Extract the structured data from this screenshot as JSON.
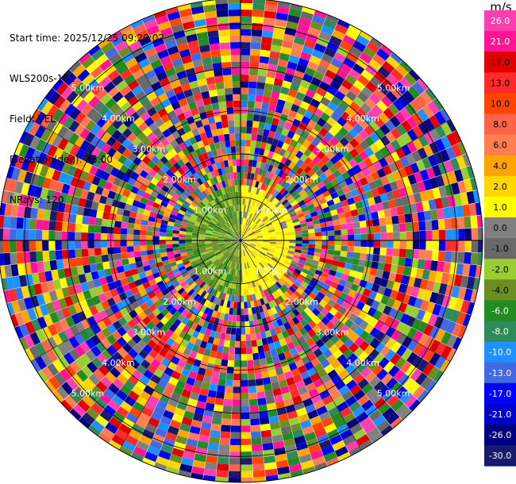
{
  "info": {
    "start_time": "Start time: 2025/12/25 09:20:02",
    "instrument": "WLS200s-181",
    "field": "Field: VEL",
    "elevation": "Elevation(deg): 35.00",
    "nrays": "NRays: 120"
  },
  "colorbar": {
    "unit": "m/s",
    "ticks": [
      "26.0",
      "21.0",
      "17.0",
      "13.0",
      "10.0",
      "8.0",
      "6.0",
      "4.0",
      "2.0",
      "1.0",
      "0.0",
      "-1.0",
      "-2.0",
      "-4.0",
      "-6.0",
      "-8.0",
      "-10.0",
      "-13.0",
      "-17.0",
      "-21.0",
      "-26.0",
      "-30.0"
    ],
    "colors": [
      "#ff3fb0",
      "#ff1493",
      "#e00000",
      "#ff2a2a",
      "#ff4500",
      "#ff6347",
      "#ff7f50",
      "#ffa500",
      "#ffd700",
      "#ffff00",
      "#808080",
      "#696969",
      "#9acd32",
      "#6b8e23",
      "#228b22",
      "#2e8b57",
      "#1e90ff",
      "#4169e1",
      "#0000ff",
      "#0000cd",
      "#000080",
      "#191970"
    ]
  },
  "chart_data": {
    "type": "heatmap",
    "projection": "polar PPI",
    "field": "VEL",
    "unit": "m/s",
    "nrays": 120,
    "range_ring_labels": [
      "1.00km",
      "2.00km",
      "3.00km",
      "4.00km",
      "5.00km"
    ],
    "max_range_km": 5.6,
    "color_range": [
      -30.0,
      26.0
    ]
  }
}
